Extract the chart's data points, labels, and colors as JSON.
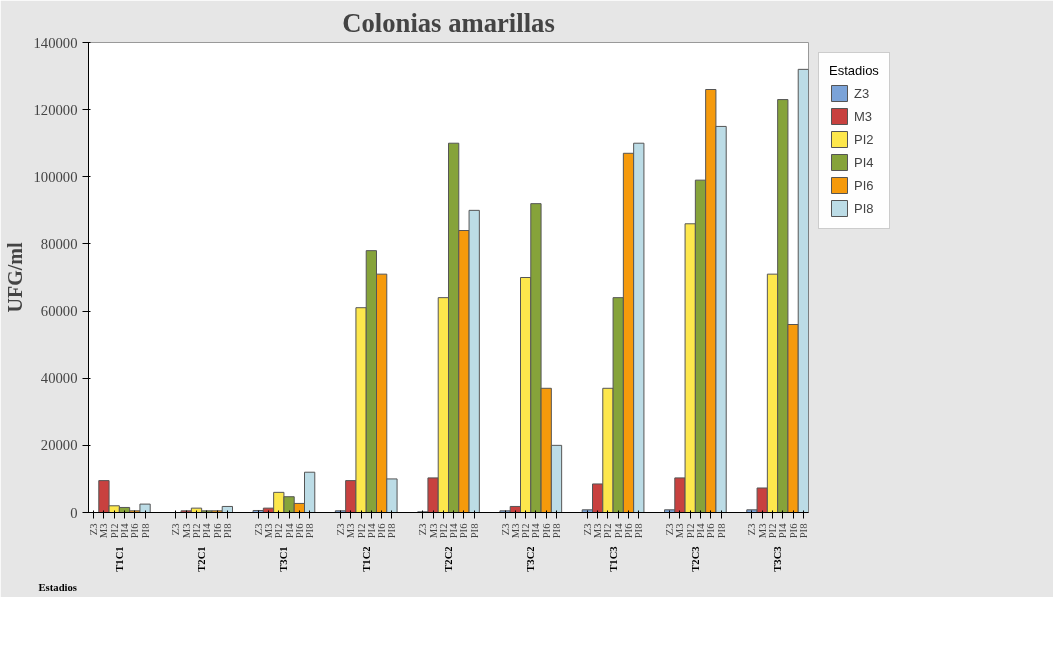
{
  "chart_data": {
    "type": "bar",
    "title": "Colonias amarillas",
    "xlabel": "Estadios",
    "ylabel": "UFG/ml",
    "legend_title": "Estadios",
    "categories": [
      "T1C1",
      "T2C1",
      "T3C1",
      "T1C2",
      "T2C2",
      "T3C2",
      "T1C3",
      "T2C3",
      "T3C3"
    ],
    "series": [
      {
        "name": "Z3",
        "color": "#7ba3d8",
        "values": [
          null,
          null,
          600,
          500,
          200,
          500,
          800,
          800,
          800
        ]
      },
      {
        "name": "M3",
        "color": "#c8413f",
        "values": [
          9500,
          500,
          1300,
          9500,
          10300,
          1800,
          8500,
          10300,
          7300
        ]
      },
      {
        "name": "PI2",
        "color": "#fde74c",
        "values": [
          2000,
          1300,
          6000,
          61000,
          64000,
          70000,
          37000,
          86000,
          71000
        ]
      },
      {
        "name": "PI4",
        "color": "#86a33a",
        "values": [
          1500,
          500,
          4700,
          78000,
          110000,
          92000,
          64000,
          99000,
          123000
        ]
      },
      {
        "name": "PI6",
        "color": "#f59a0c",
        "values": [
          500,
          500,
          2700,
          71000,
          84000,
          37000,
          107000,
          126000,
          56000
        ]
      },
      {
        "name": "PI8",
        "color": "#bcdce6",
        "values": [
          2500,
          1800,
          12000,
          10000,
          90000,
          20000,
          110000,
          115000,
          132000
        ]
      }
    ],
    "ylim": [
      0,
      140000
    ],
    "yticks": [
      0,
      20000,
      40000,
      60000,
      80000,
      100000,
      120000,
      140000
    ],
    "grid": false,
    "legend": "top right"
  }
}
